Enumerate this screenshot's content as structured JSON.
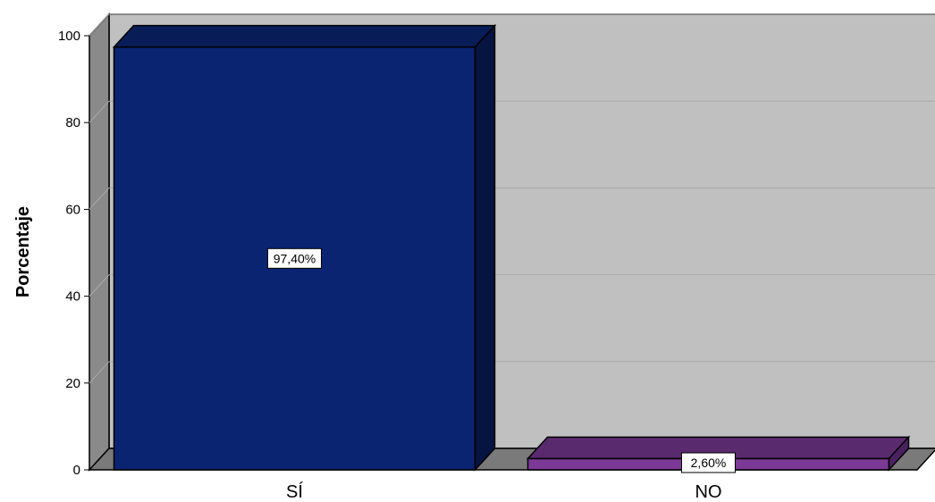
{
  "chart_data": {
    "type": "bar",
    "title": "",
    "xlabel": "",
    "ylabel": "Porcentaje",
    "categories": [
      "SÍ",
      "NO"
    ],
    "values": [
      97.4,
      2.6
    ],
    "data_labels": [
      "97,40%",
      "2,60%"
    ],
    "ylim": [
      0,
      100
    ],
    "yticks": [
      0,
      20,
      40,
      60,
      80,
      100
    ],
    "grid": true,
    "legend": "none",
    "style": "3d",
    "colors": {
      "bar_front": [
        "#0a2472",
        "#7b3a96"
      ],
      "bar_top": [
        "#081d58",
        "#5a2a6e"
      ],
      "bar_side": [
        "#051440",
        "#4a2160"
      ],
      "plot_wall": "#c0c0c0",
      "left_wall": "#8a8a8a",
      "floor": "#7a7a7a",
      "grid": "#a8a8a8"
    }
  }
}
